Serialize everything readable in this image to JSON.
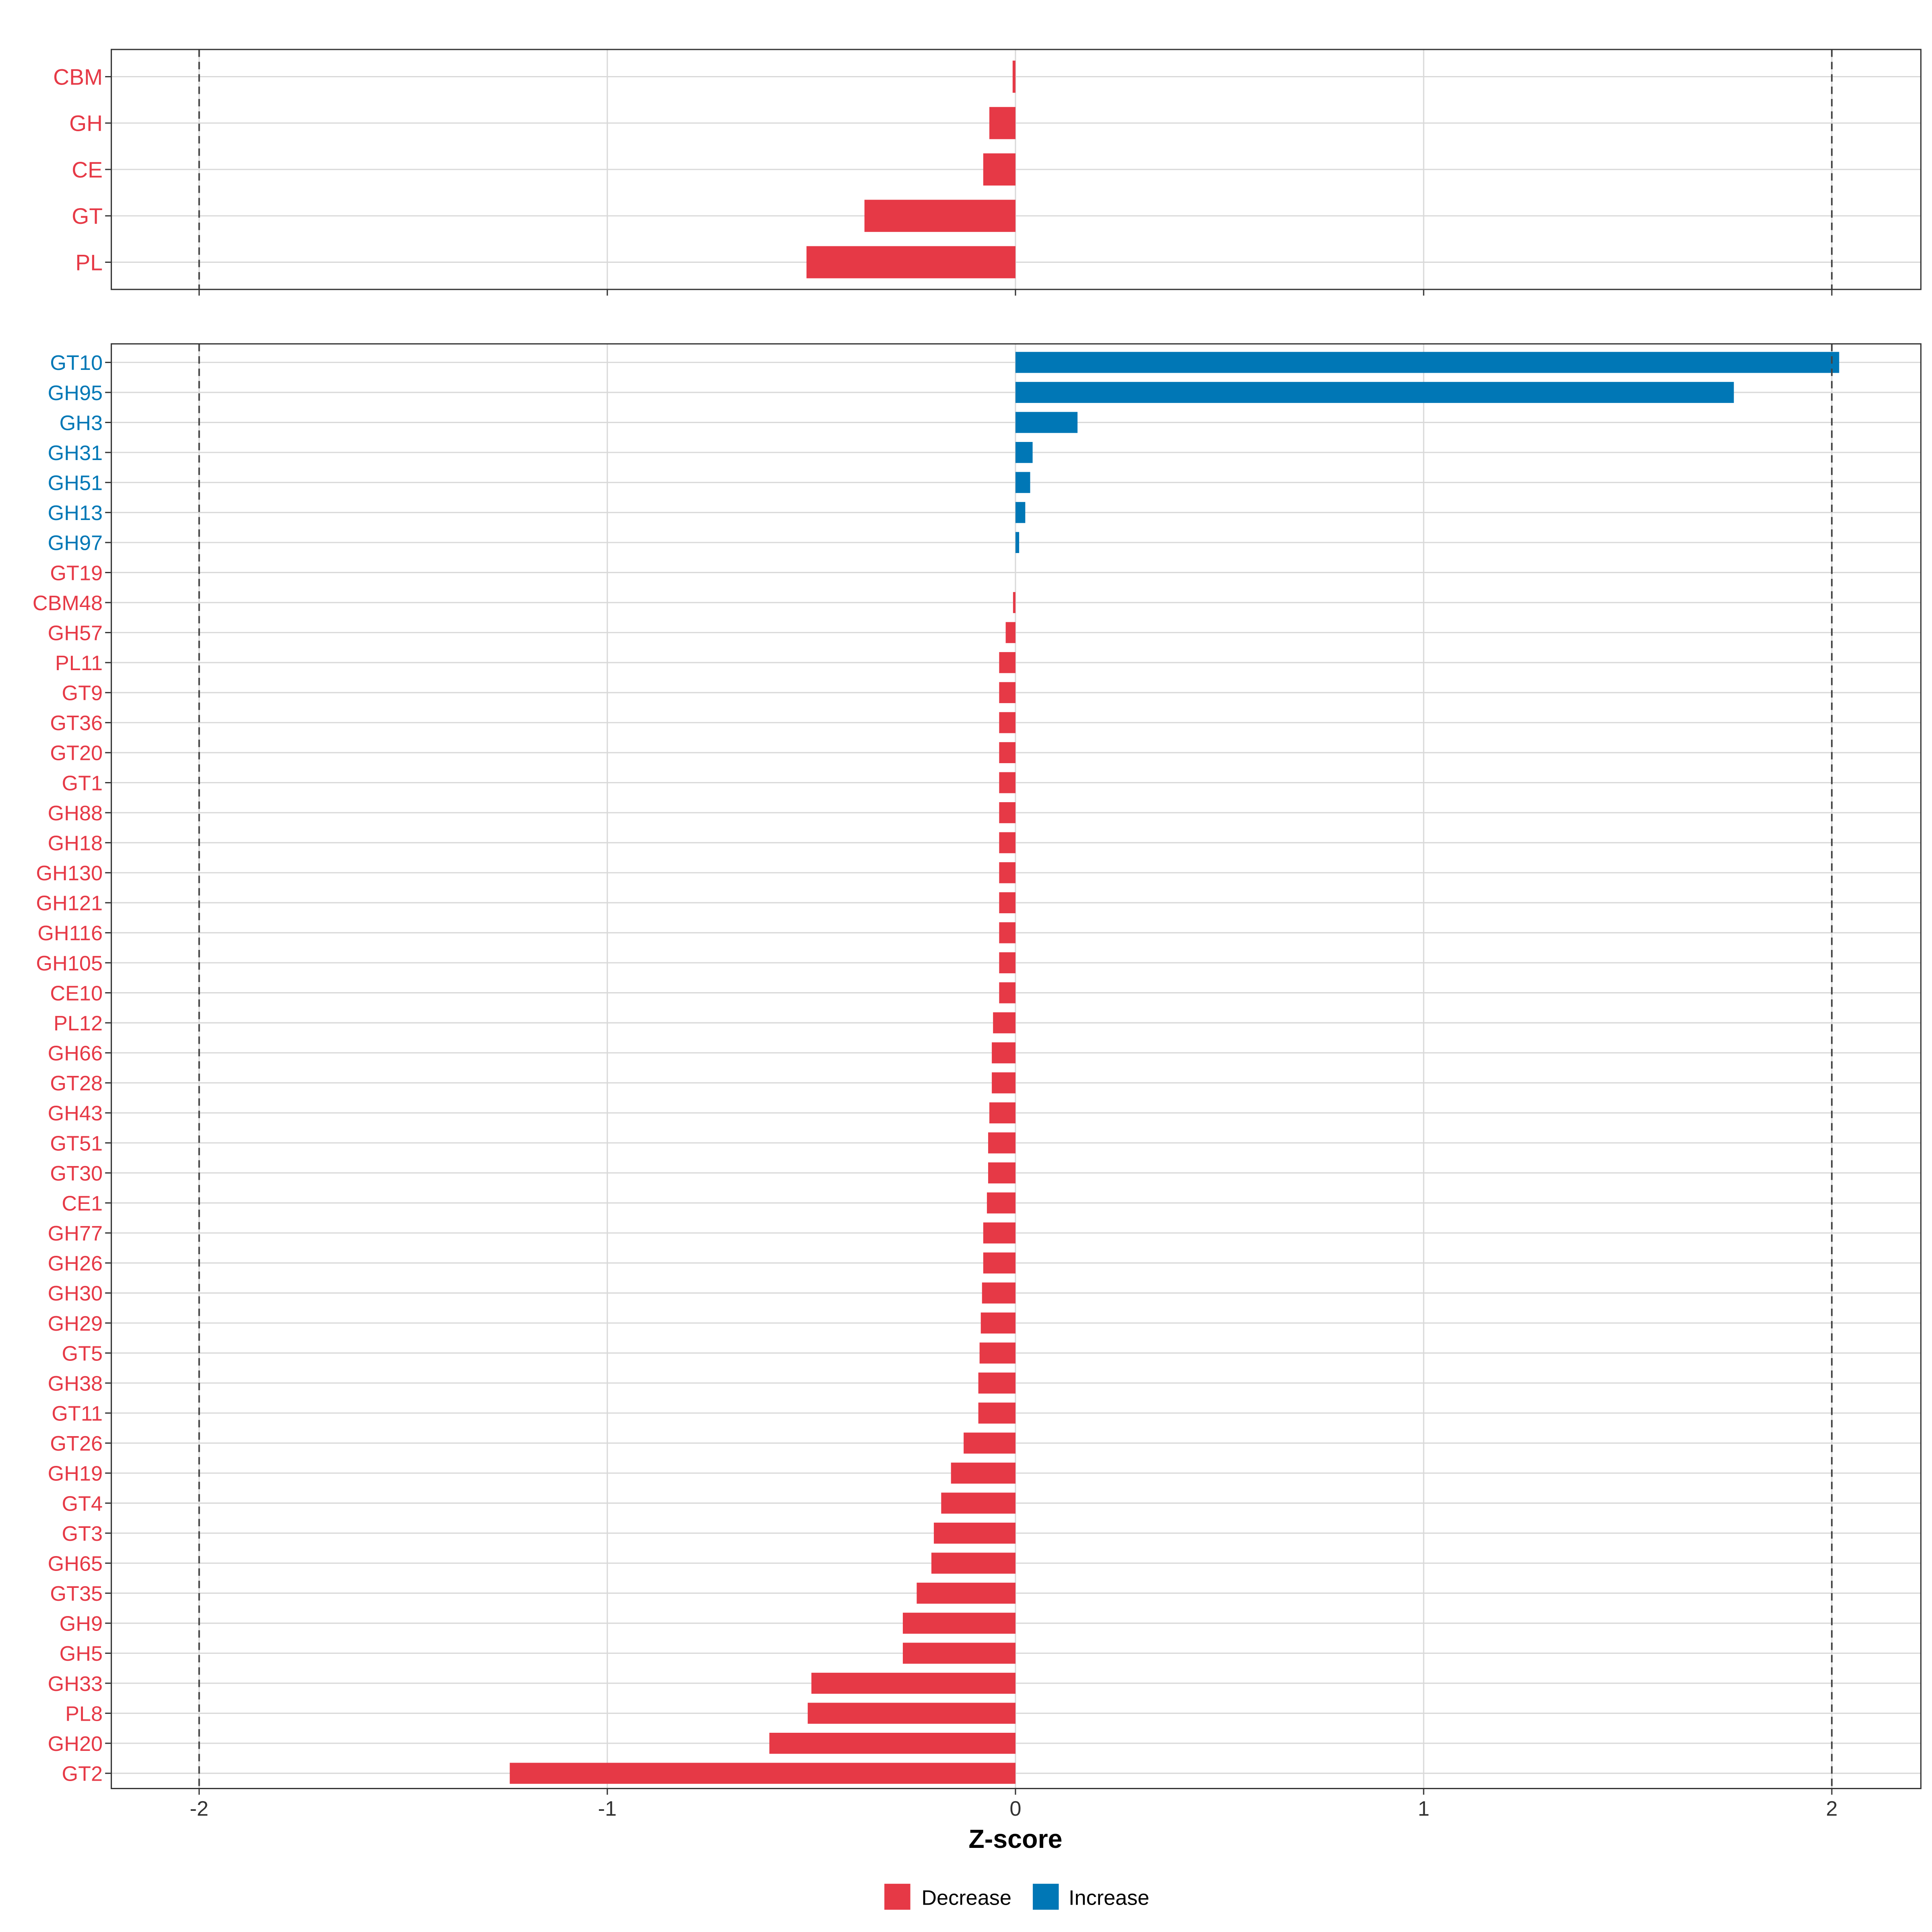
{
  "chart_data": [
    {
      "type": "bar",
      "orientation": "horizontal",
      "panel": "top",
      "categories": [
        "CBM",
        "GH",
        "CE",
        "GT",
        "PL"
      ],
      "values": [
        -0.007,
        -0.064,
        -0.079,
        -0.37,
        -0.512
      ]
    },
    {
      "type": "bar",
      "orientation": "horizontal",
      "panel": "bottom",
      "categories": [
        "GT10",
        "GH95",
        "GH3",
        "GH31",
        "GH51",
        "GH13",
        "GH97",
        "GT19",
        "CBM48",
        "GH57",
        "PL11",
        "GT9",
        "GT36",
        "GT20",
        "GT1",
        "GH88",
        "GH18",
        "GH130",
        "GH121",
        "GH116",
        "GH105",
        "CE10",
        "PL12",
        "GH66",
        "GT28",
        "GH43",
        "GT51",
        "GT30",
        "CE1",
        "GH77",
        "GH26",
        "GH30",
        "GH29",
        "GT5",
        "GH38",
        "GT11",
        "GT26",
        "GH19",
        "GT4",
        "GT3",
        "GH65",
        "GT35",
        "GH9",
        "GH5",
        "GH33",
        "PL8",
        "GH20",
        "GT2"
      ],
      "values": [
        2.018,
        1.76,
        0.152,
        0.042,
        0.036,
        0.024,
        0.009,
        0.0,
        -0.006,
        -0.024,
        -0.04,
        -0.04,
        -0.04,
        -0.04,
        -0.04,
        -0.04,
        -0.04,
        -0.04,
        -0.04,
        -0.04,
        -0.04,
        -0.04,
        -0.055,
        -0.058,
        -0.058,
        -0.064,
        -0.067,
        -0.067,
        -0.07,
        -0.079,
        -0.079,
        -0.082,
        -0.085,
        -0.088,
        -0.091,
        -0.091,
        -0.127,
        -0.158,
        -0.182,
        -0.2,
        -0.206,
        -0.242,
        -0.276,
        -0.276,
        -0.5,
        -0.509,
        -0.603,
        -1.239
      ]
    }
  ],
  "xaxis": {
    "label": "Z-score",
    "xlim": [
      -2.21,
      2.21
    ],
    "ticks": [
      -2,
      -1,
      0,
      1,
      2
    ],
    "tick_labels": [
      "-2",
      "-1",
      "0",
      "1",
      "2"
    ],
    "reference_lines": [
      -2,
      2
    ]
  },
  "legend": {
    "placement": "bottom",
    "items": [
      {
        "label": "Decrease",
        "color": "#E63946"
      },
      {
        "label": "Increase",
        "color": "#0077B6"
      }
    ]
  },
  "colors": {
    "decrease": "#E63946",
    "increase": "#0077B6",
    "grid": "#D9D9D9"
  }
}
